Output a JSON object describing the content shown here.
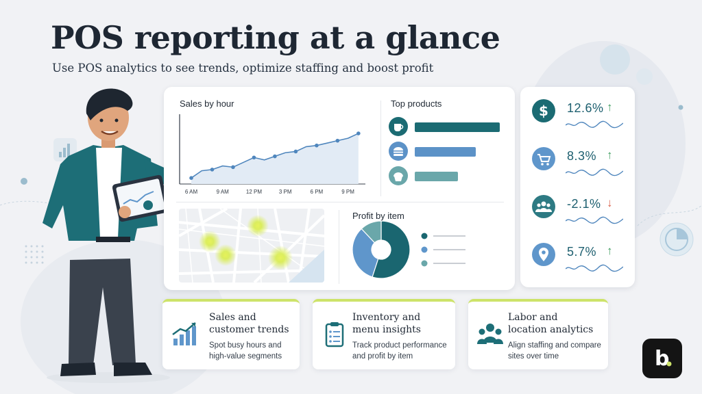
{
  "header": {
    "title": "POS reporting at a glance",
    "subtitle": "Use POS analytics to see trends, optimize staffing and boost profit"
  },
  "sales_by_hour": {
    "title": "Sales by hour",
    "chart_data": {
      "type": "area",
      "title": "Sales by hour",
      "x_ticks": [
        "6 AM",
        "9 AM",
        "12 PM",
        "3 PM",
        "6 PM",
        "9 PM"
      ],
      "x": [
        6,
        7,
        8,
        9,
        10,
        11,
        12,
        13,
        14,
        15,
        16,
        17,
        18,
        19,
        20,
        21,
        22
      ],
      "values": [
        10,
        22,
        24,
        30,
        28,
        36,
        44,
        40,
        46,
        52,
        54,
        62,
        64,
        68,
        72,
        76,
        84
      ],
      "ylim": [
        0,
        100
      ]
    }
  },
  "top_products": {
    "title": "Top products",
    "items": [
      {
        "icon": "coffee-cup-icon",
        "value": 100,
        "color": "#1b6b73"
      },
      {
        "icon": "burger-icon",
        "value": 72,
        "color": "#5c92c7"
      },
      {
        "icon": "cupcake-icon",
        "value": 51,
        "color": "#6aa7aa"
      }
    ]
  },
  "profit_by_item": {
    "title": "Profit by item",
    "chart_data": {
      "type": "pie",
      "values": [
        55,
        33,
        12
      ],
      "colors": [
        "#1a6670",
        "#5f96cb",
        "#6aa7aa"
      ]
    }
  },
  "kpis": [
    {
      "icon": "dollar-icon",
      "value": "12.6%",
      "direction": "up",
      "bg": "#1b6b73"
    },
    {
      "icon": "cart-icon",
      "value": "8.3%",
      "direction": "up",
      "bg": "#5f96cb"
    },
    {
      "icon": "group-icon",
      "value": "-2.1%",
      "direction": "down",
      "bg": "#2d7a83"
    },
    {
      "icon": "location-pin-icon",
      "value": "5.7%",
      "direction": "up",
      "bg": "#5f96cb"
    }
  ],
  "colors": {
    "up": "#3a9a5b",
    "down": "#d9604a",
    "accent": "#cde36a",
    "teal": "#1b6b73"
  },
  "features": [
    {
      "icon": "growth-chart-icon",
      "title": "Sales and\ncustomer trends",
      "desc": "Spot busy hours and\nhigh-value segments"
    },
    {
      "icon": "clipboard-list-icon",
      "title": "Inventory and\nmenu insights",
      "desc": "Track product performance\nand profit by item"
    },
    {
      "icon": "team-icon",
      "title": "Labor and\nlocation analytics",
      "desc": "Align staffing and compare\nsites over time"
    }
  ],
  "brand": {
    "logo_letter": "b"
  }
}
